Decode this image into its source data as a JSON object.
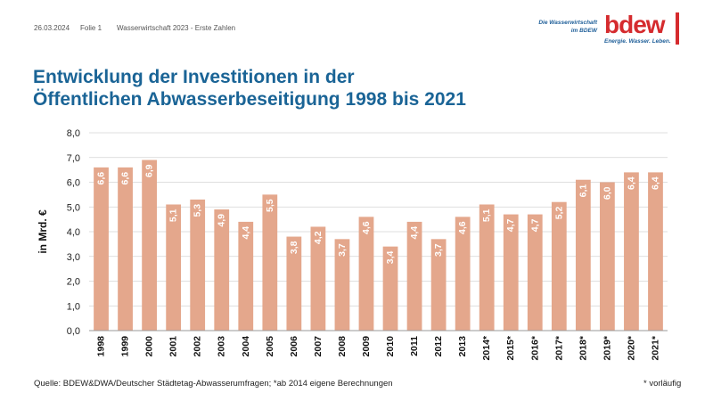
{
  "header": {
    "date": "26.03.2024",
    "page": "Folie 1",
    "doc_title": "Wasserwirtschaft 2023 - Erste Zahlen",
    "tagline_1": "Die Wasserwirtschaft",
    "tagline_2": "im BDEW",
    "logo_text": "bdew",
    "logo_slogan": "Energie. Wasser. Leben."
  },
  "title_line1": "Entwicklung der Investitionen in der",
  "title_line2": "Öffentlichen Abwasserbeseitigung 1998 bis 2021",
  "source": "Quelle: BDEW&DWA/Deutscher Städtetag-Abwasserumfragen; *ab 2014 eigene Berechnungen",
  "footnote": "* vorläufig",
  "colors": {
    "bar": "#e4a78c",
    "title": "#1a6496",
    "brand_red": "#d52b2e",
    "brand_blue": "#1f5f99",
    "grid": "#d4d4d4"
  },
  "chart_data": {
    "type": "bar",
    "categories": [
      "1998",
      "1999",
      "2000",
      "2001",
      "2002",
      "2003",
      "2004",
      "2005",
      "2006",
      "2007",
      "2008",
      "2009",
      "2010",
      "2011",
      "2012",
      "2013",
      "2014*",
      "2015*",
      "2016*",
      "2017*",
      "2018*",
      "2019*",
      "2020*",
      "2021*"
    ],
    "values": [
      6.6,
      6.6,
      6.9,
      5.1,
      5.3,
      4.9,
      4.4,
      5.5,
      3.8,
      4.2,
      3.7,
      4.6,
      3.4,
      4.4,
      3.7,
      4.6,
      5.1,
      4.7,
      4.7,
      5.2,
      6.1,
      6.0,
      6.4,
      6.4
    ],
    "value_labels": [
      "6,6",
      "6,6",
      "6,9",
      "5,1",
      "5,3",
      "4,9",
      "4,4",
      "5,5",
      "3,8",
      "4,2",
      "3,7",
      "4,6",
      "3,4",
      "4,4",
      "3,7",
      "4,6",
      "5,1",
      "4,7",
      "4,7",
      "5,2",
      "6,1",
      "6,0",
      "6,4",
      "6,4"
    ],
    "ylabel": "in Mrd. €",
    "xlabel": "",
    "ylim": [
      0,
      8
    ],
    "yticks": [
      0,
      1,
      2,
      3,
      4,
      5,
      6,
      7,
      8
    ],
    "ytick_labels": [
      "0,0",
      "1,0",
      "2,0",
      "3,0",
      "4,0",
      "5,0",
      "6,0",
      "7,0",
      "8,0"
    ],
    "grid": true
  }
}
